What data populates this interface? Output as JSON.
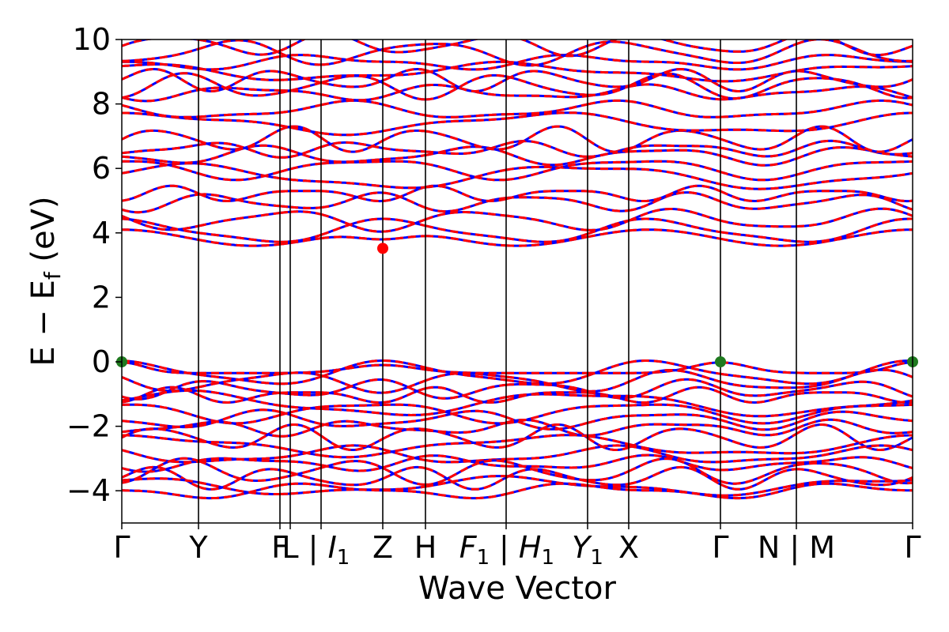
{
  "chart_data": {
    "type": "line",
    "title": "",
    "xlabel": "Wave Vector",
    "ylabel": "E − E_f (eV)",
    "ylabel_parts": {
      "main": "E − E",
      "sub": "f",
      "unit": " (eV)"
    },
    "ylim": [
      -5,
      10
    ],
    "yticks": [
      {
        "value": -4,
        "label": "−4"
      },
      {
        "value": -2,
        "label": "−2"
      },
      {
        "value": 0,
        "label": "0"
      },
      {
        "value": 2,
        "label": "2"
      },
      {
        "value": 4,
        "label": "4"
      },
      {
        "value": 6,
        "label": "6"
      },
      {
        "value": 8,
        "label": "8"
      },
      {
        "value": 10,
        "label": "10"
      }
    ],
    "xlim": [
      0,
      1
    ],
    "high_symmetry_points": [
      {
        "pos": 0.0,
        "label": "Γ"
      },
      {
        "pos": 0.097,
        "label": "Y"
      },
      {
        "pos": 0.2,
        "label": "F"
      },
      {
        "pos": 0.213,
        "label": "L"
      },
      {
        "pos": 0.252,
        "label": "| I1"
      },
      {
        "pos": 0.33,
        "label": "Z"
      },
      {
        "pos": 0.384,
        "label": "H"
      },
      {
        "pos": 0.486,
        "label": "F1 | H1"
      },
      {
        "pos": 0.589,
        "label": "Y1"
      },
      {
        "pos": 0.641,
        "label": "X"
      },
      {
        "pos": 0.757,
        "label": "Γ"
      },
      {
        "pos": 0.853,
        "label": "N | M"
      },
      {
        "pos": 1.0,
        "label": "Γ"
      }
    ],
    "kpath_labels": [
      {
        "text": "Γ",
        "pos": 0.0,
        "sub": ""
      },
      {
        "text": "Y",
        "pos": 0.097,
        "sub": ""
      },
      {
        "text": "F",
        "pos": 0.2,
        "sub": ""
      },
      {
        "text": "L",
        "pos": 0.213,
        "sub": ""
      },
      {
        "text": "| I",
        "pos": 0.262,
        "sub": "1"
      },
      {
        "text": "Z",
        "pos": 0.33,
        "sub": ""
      },
      {
        "text": "H",
        "pos": 0.384,
        "sub": ""
      },
      {
        "text": "F",
        "pos": 0.446,
        "sub": "1"
      },
      {
        "text": "| H",
        "pos": 0.512,
        "sub": "1"
      },
      {
        "text": "Y",
        "pos": 0.589,
        "sub": "1"
      },
      {
        "text": "X",
        "pos": 0.641,
        "sub": ""
      },
      {
        "text": "Γ",
        "pos": 0.757,
        "sub": ""
      },
      {
        "text": "N | M",
        "pos": 0.853,
        "sub": ""
      },
      {
        "text": "Γ",
        "pos": 1.0,
        "sub": ""
      }
    ],
    "path_break_positions": [
      0.252,
      0.486,
      0.853
    ],
    "series": [
      {
        "style": "solid",
        "color": "#0000ff"
      },
      {
        "style": "dashed",
        "color": "#ff0000"
      }
    ],
    "conduction_bands": [
      3.85,
      4.05,
      4.4,
      4.95,
      5.2,
      5.75,
      6.0,
      6.4,
      6.6,
      6.9,
      7.4,
      7.8,
      8.35,
      8.55,
      8.75,
      9.0,
      9.3,
      9.6,
      9.85
    ],
    "valence_bands": [
      -0.05,
      -0.35,
      -0.6,
      -0.85,
      -1.05,
      -1.3,
      -1.55,
      -1.8,
      -2.05,
      -2.35,
      -2.6,
      -2.9,
      -3.15,
      -3.4,
      -3.6,
      -3.85,
      -4.0
    ],
    "markers": [
      {
        "x": 0.0,
        "y": 0.0,
        "color": "#1f7a1f",
        "kind": "VBM"
      },
      {
        "x": 0.757,
        "y": 0.0,
        "color": "#1f7a1f",
        "kind": "VBM"
      },
      {
        "x": 1.0,
        "y": 0.0,
        "color": "#1f7a1f",
        "kind": "VBM"
      },
      {
        "x": 0.33,
        "y": 3.52,
        "color": "#ff0000",
        "kind": "CBM"
      }
    ],
    "grid": false,
    "legend": "none"
  }
}
